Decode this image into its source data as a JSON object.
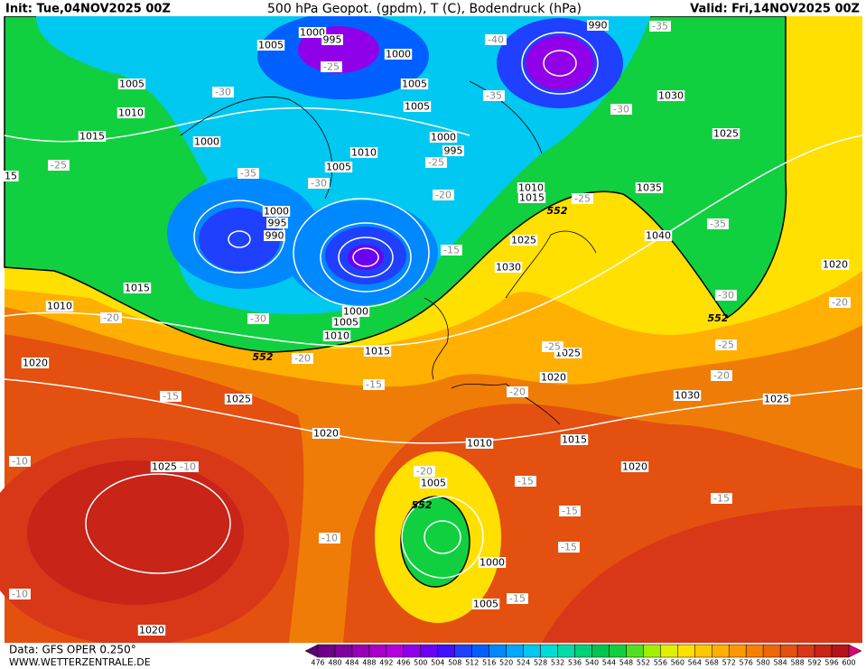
{
  "header": {
    "init": "Init: Tue,04NOV2025 00Z",
    "title": "500 hPa Geopot. (gpdm), T (C), Bodendruck (hPa)",
    "valid": "Valid: Fri,14NOV2025 00Z"
  },
  "footer": {
    "data": "Data: GFS OPER 0.250°",
    "site": "WWW.WETTERZENTRALE.DE"
  },
  "colorbar": {
    "levels": [
      476,
      480,
      484,
      488,
      492,
      496,
      500,
      504,
      508,
      512,
      516,
      520,
      524,
      528,
      532,
      536,
      540,
      544,
      548,
      552,
      556,
      560,
      564,
      568,
      572,
      576,
      580,
      584,
      588,
      592,
      596,
      600
    ],
    "colors": [
      "#5a0070",
      "#6c0088",
      "#80009c",
      "#9600b4",
      "#a800c8",
      "#b400dc",
      "#9000e8",
      "#6a00f4",
      "#4010ff",
      "#2040ff",
      "#0060ff",
      "#0088ff",
      "#00a8ff",
      "#00c8f0",
      "#00dcd8",
      "#00dca8",
      "#00d078",
      "#00c450",
      "#10d040",
      "#50e020",
      "#a0f000",
      "#e0f000",
      "#ffe000",
      "#ffc800",
      "#ffb000",
      "#ff9800",
      "#f88000",
      "#ee6808",
      "#e45010",
      "#d83818",
      "#c82418",
      "#b41418",
      "#e0007c"
    ]
  },
  "map": {
    "isobar_labels": [
      "1005",
      "1000",
      "995",
      "1000",
      "1005",
      "1005",
      "1005",
      "1010",
      "1015",
      "1000",
      "1010",
      "1005",
      "1000",
      "995",
      "1000",
      "995",
      "990",
      "1010",
      "1015",
      "1025",
      "1030",
      "1035",
      "1040",
      "1030",
      "1025",
      "1020",
      "1015",
      "1010",
      "1005",
      "1000",
      "1010",
      "1015",
      "1020",
      "1025",
      "1020",
      "1025",
      "1020",
      "1030",
      "1025",
      "1010",
      "1015",
      "1020",
      "1025",
      "1005",
      "1000",
      "1005",
      "1020",
      "15",
      "990"
    ],
    "temperature_labels": [
      "-25",
      "-30",
      "-35",
      "-30",
      "-25",
      "-20",
      "-15",
      "-40",
      "-35",
      "-35",
      "-30",
      "-25",
      "-35",
      "-30",
      "-25",
      "-20",
      "-20",
      "-25",
      "-20",
      "-15",
      "-20",
      "-30",
      "-20",
      "-15",
      "-10",
      "-10",
      "-10",
      "-10",
      "-20",
      "-15",
      "-15",
      "-15",
      "-15",
      "-15",
      "-25"
    ],
    "geopotential_labels": [
      "552",
      "552",
      "552",
      "552"
    ]
  }
}
